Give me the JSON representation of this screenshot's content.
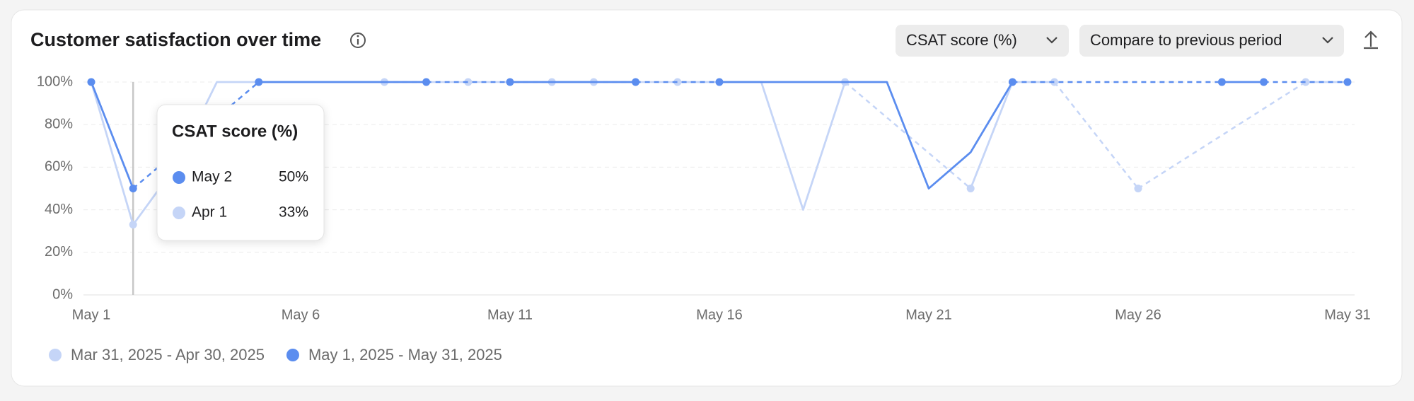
{
  "header": {
    "title": "Customer satisfaction over time",
    "metric_select": "CSAT score (%)",
    "compare_select": "Compare to previous period"
  },
  "chart_data": {
    "type": "line",
    "categories": [
      "May 1",
      null,
      null,
      null,
      null,
      "May 6",
      null,
      null,
      null,
      null,
      "May 11",
      null,
      null,
      null,
      null,
      "May 16",
      null,
      null,
      null,
      null,
      "May 21",
      null,
      null,
      null,
      null,
      "May 26",
      null,
      null,
      null,
      null,
      "May 31"
    ],
    "ylim": [
      0,
      100
    ],
    "yticks": [
      {
        "value": 0,
        "label": "0%"
      },
      {
        "value": 20,
        "label": "20%"
      },
      {
        "value": 40,
        "label": "40%"
      },
      {
        "value": 60,
        "label": "60%"
      },
      {
        "value": 80,
        "label": "80%"
      },
      {
        "value": 100,
        "label": "100%"
      }
    ],
    "grid": true,
    "series": [
      {
        "name": "Mar 31, 2025 - Apr 30, 2025",
        "color": "#c5d5f7",
        "values": [
          100,
          33,
          60,
          100,
          100,
          100,
          100,
          100,
          null,
          100,
          null,
          100,
          100,
          null,
          100,
          100,
          100,
          40,
          100,
          null,
          null,
          50,
          100,
          100,
          null,
          50,
          null,
          null,
          null,
          100,
          100
        ]
      },
      {
        "name": "May 1, 2025 - May 31, 2025",
        "color": "#5b8def",
        "values": [
          100,
          50,
          null,
          null,
          100,
          100,
          100,
          100,
          100,
          null,
          100,
          100,
          100,
          100,
          null,
          100,
          100,
          100,
          100,
          100,
          50,
          67,
          100,
          null,
          null,
          null,
          null,
          100,
          100,
          null,
          100
        ]
      }
    ]
  },
  "tooltip": {
    "title": "CSAT score (%)",
    "rows": [
      [
        "May 2",
        "50%"
      ],
      [
        "Apr 1",
        "33%"
      ]
    ]
  }
}
